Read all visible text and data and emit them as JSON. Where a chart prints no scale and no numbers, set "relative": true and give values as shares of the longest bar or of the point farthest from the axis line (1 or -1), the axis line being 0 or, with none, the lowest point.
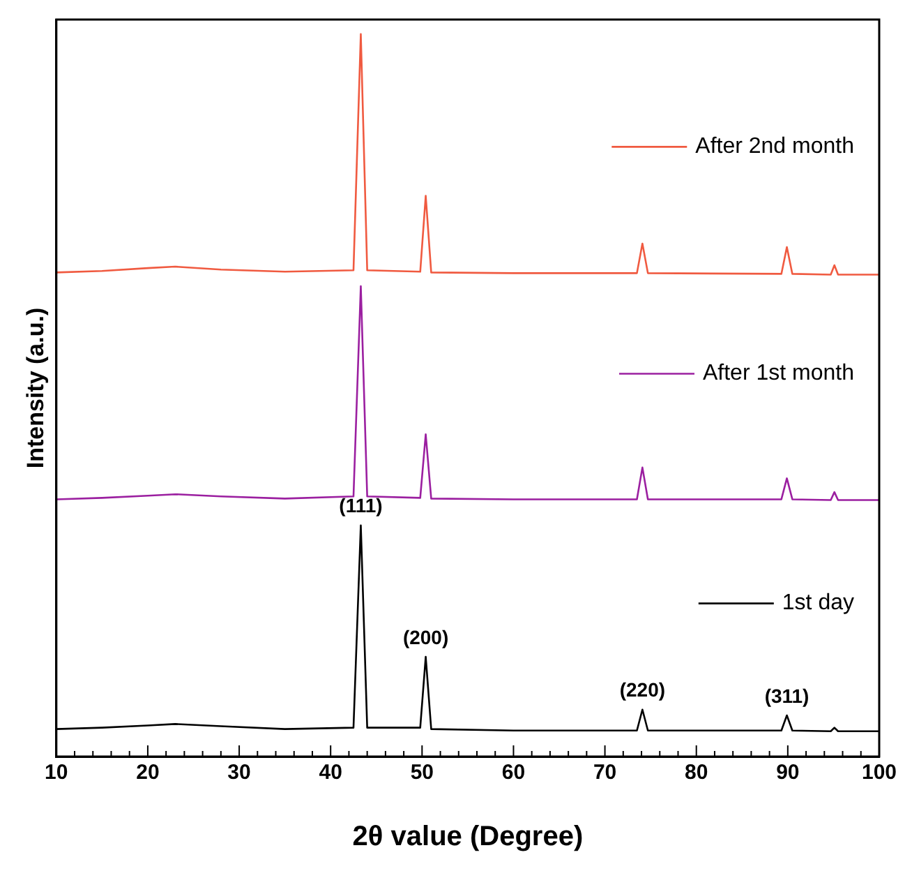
{
  "chart_data": {
    "type": "line",
    "relative": true,
    "legend": "right",
    "xlabel": "2θ value (Degree)",
    "ylabel": "Intensity (a.u.)",
    "xlim": [
      10,
      100
    ],
    "xticks": [
      10,
      {
        "value": 12,
        "label": null
      },
      {
        "value": 14,
        "label": null
      },
      {
        "value": 16,
        "label": null
      },
      {
        "value": 18,
        "label": null
      },
      20,
      {
        "value": 22,
        "label": null
      },
      {
        "value": 24,
        "label": null
      },
      {
        "value": 26,
        "label": null
      },
      {
        "value": 28,
        "label": null
      },
      30,
      {
        "value": 32,
        "label": null
      },
      {
        "value": 34,
        "label": null
      },
      {
        "value": 36,
        "label": null
      },
      {
        "value": 38,
        "label": null
      },
      40,
      {
        "value": 42,
        "label": null
      },
      {
        "value": 44,
        "label": null
      },
      {
        "value": 46,
        "label": null
      },
      {
        "value": 48,
        "label": null
      },
      50,
      {
        "value": 52,
        "label": null
      },
      {
        "value": 54,
        "label": null
      },
      {
        "value": 56,
        "label": null
      },
      {
        "value": 58,
        "label": null
      },
      60,
      {
        "value": 62,
        "label": null
      },
      {
        "value": 64,
        "label": null
      },
      {
        "value": 66,
        "label": null
      },
      {
        "value": 68,
        "label": null
      },
      70,
      {
        "value": 72,
        "label": null
      },
      {
        "value": 74,
        "label": null
      },
      {
        "value": 76,
        "label": null
      },
      {
        "value": 78,
        "label": null
      },
      80,
      {
        "value": 82,
        "label": null
      },
      {
        "value": 84,
        "label": null
      },
      {
        "value": 86,
        "label": null
      },
      {
        "value": 88,
        "label": null
      },
      90,
      {
        "value": 92,
        "label": null
      },
      {
        "value": 94,
        "label": null
      },
      {
        "value": 96,
        "label": null
      },
      {
        "value": 98,
        "label": null
      },
      100
    ],
    "x": [
      10,
      15,
      20,
      23,
      28,
      35,
      42.5,
      43.3,
      44,
      49.8,
      50.4,
      51,
      60,
      73.5,
      74.1,
      74.7,
      89.3,
      89.9,
      90.5,
      94.7,
      95.1,
      95.5,
      100
    ],
    "series": [
      {
        "name": "1st day",
        "color": "#000000",
        "values": [
          0.038,
          0.04,
          0.043,
          0.045,
          0.042,
          0.038,
          0.04,
          0.32,
          0.04,
          0.04,
          0.138,
          0.038,
          0.036,
          0.036,
          0.065,
          0.036,
          0.036,
          0.057,
          0.036,
          0.035,
          0.04,
          0.035,
          0.035
        ]
      },
      {
        "name": "After 1st month",
        "color": "#9b1fa0",
        "values": [
          0.356,
          0.358,
          0.361,
          0.363,
          0.36,
          0.357,
          0.36,
          0.651,
          0.36,
          0.358,
          0.446,
          0.357,
          0.356,
          0.356,
          0.4,
          0.356,
          0.356,
          0.385,
          0.356,
          0.355,
          0.366,
          0.355,
          0.355
        ]
      },
      {
        "name": "After 2nd month",
        "color": "#f05a40",
        "values": [
          0.67,
          0.672,
          0.676,
          0.678,
          0.674,
          0.671,
          0.673,
          1,
          0.673,
          0.671,
          0.776,
          0.67,
          0.669,
          0.669,
          0.71,
          0.669,
          0.668,
          0.705,
          0.668,
          0.667,
          0.68,
          0.667,
          0.667
        ]
      }
    ],
    "annotations": [
      {
        "text": "(111)",
        "x": 43.3,
        "y": 0.32
      },
      {
        "text": "(200)",
        "x": 50.4,
        "y": 0.138
      },
      {
        "text": "(220)",
        "x": 74.1,
        "y": 0.065
      },
      {
        "text": "(311)",
        "x": 89.9,
        "y": 0.057
      }
    ]
  }
}
